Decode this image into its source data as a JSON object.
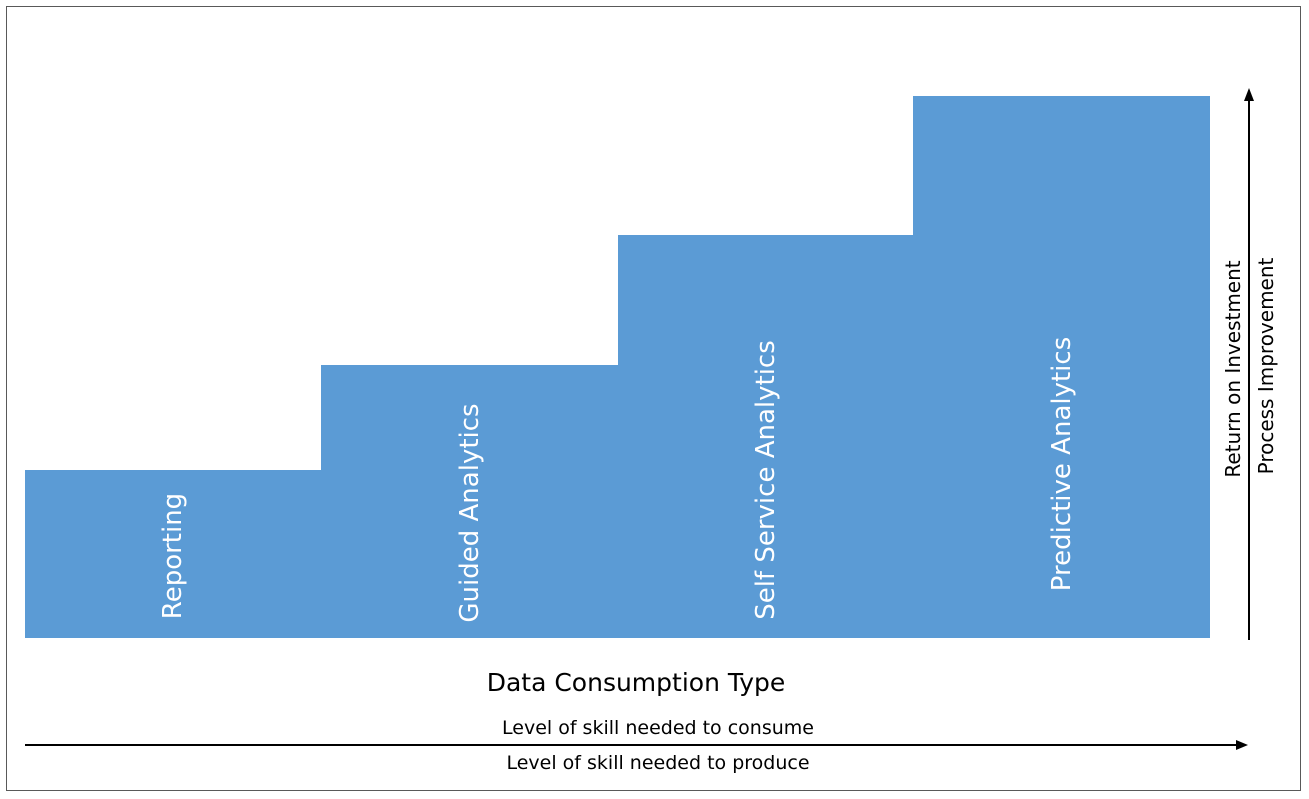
{
  "steps": [
    {
      "label": "Reporting"
    },
    {
      "label": "Guided Analytics"
    },
    {
      "label": "Self Service Analytics"
    },
    {
      "label": "Predictive Analytics"
    }
  ],
  "x_title": "Data Consumption Type",
  "horizontal_arrow": {
    "top_label": "Level of skill needed to consume",
    "bottom_label": "Level of skill needed to produce"
  },
  "vertical_arrow": {
    "label_1": "Return on Investment",
    "label_2": "Process Improvement"
  },
  "colors": {
    "step_fill": "#5b9bd5",
    "text_on_step": "#ffffff",
    "line": "#000000"
  }
}
